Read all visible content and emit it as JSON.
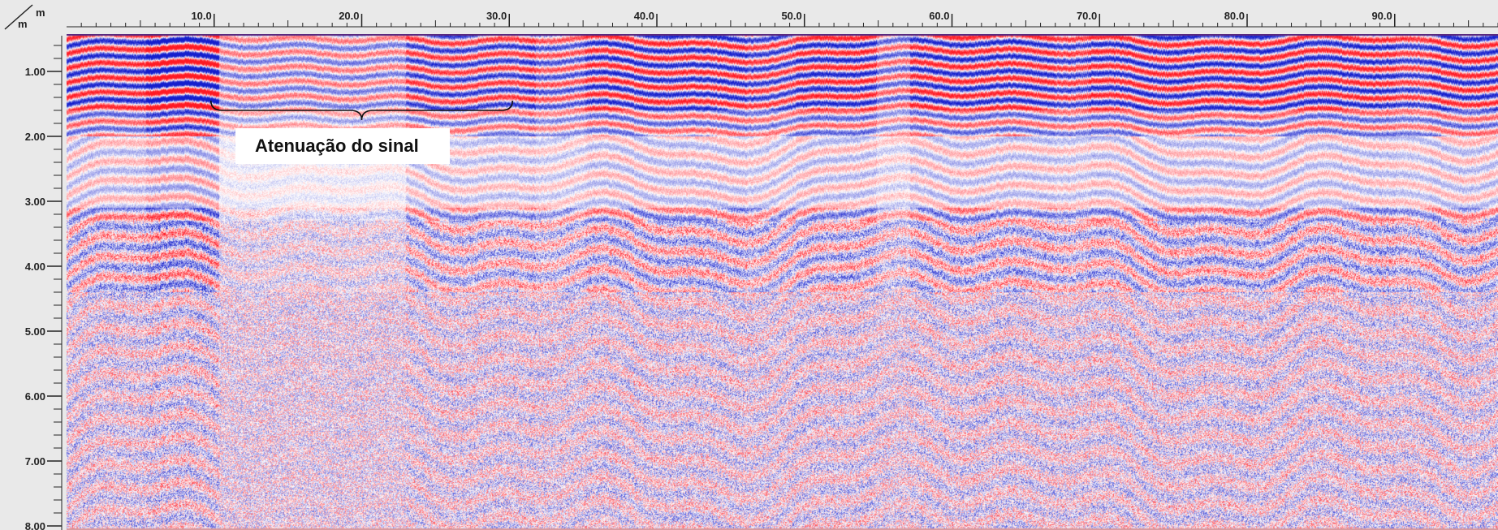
{
  "axis_units": {
    "top": "m",
    "left": "m"
  },
  "x_axis": {
    "tick_labels": [
      "10.0",
      "20.0",
      "30.0",
      "40.0",
      "50.0",
      "60.0",
      "70.0",
      "80.0",
      "90.0"
    ],
    "tick_values": [
      10,
      20,
      30,
      40,
      50,
      60,
      70,
      80,
      90
    ],
    "range": [
      0,
      97
    ]
  },
  "y_axis": {
    "tick_labels": [
      "1.00",
      "2.00",
      "3.00",
      "4.00",
      "5.00",
      "6.00",
      "7.00",
      "8.00"
    ],
    "tick_values": [
      1,
      2,
      3,
      4,
      5,
      6,
      7,
      8
    ],
    "range": [
      0.55,
      8.0
    ]
  },
  "annotation": {
    "text": "Atenuação do sinal",
    "x_start": 10.0,
    "x_end": 30.0,
    "depth": 1.75
  },
  "colors": {
    "positive": "#e0102a",
    "negative": "#1020c8",
    "background": "#ffffff",
    "frame": "#e9e9e9",
    "top_line": "#5a2a80"
  }
}
